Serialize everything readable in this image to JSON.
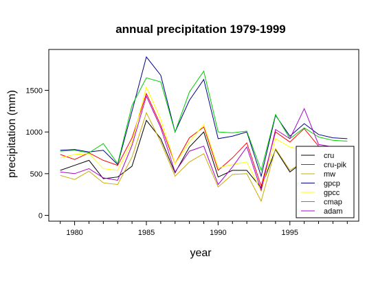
{
  "chart_data": {
    "type": "line",
    "title": "annual precipitation 1979-1999",
    "xlabel": "year",
    "ylabel": "precipitation (mm)",
    "xlim": [
      1978.2,
      1999.8
    ],
    "ylim": [
      -70,
      1990
    ],
    "xticks": [
      1980,
      1985,
      1990,
      1995
    ],
    "yticks": [
      0,
      500,
      1000,
      1500
    ],
    "grid": false,
    "legend_position": "bottom-right",
    "x": [
      1979,
      1980,
      1981,
      1982,
      1983,
      1984,
      1985,
      1986,
      1987,
      1988,
      1989,
      1990,
      1991,
      1992,
      1993,
      1994,
      1995,
      1996,
      1997,
      1998,
      1999
    ],
    "series": [
      {
        "name": "cru",
        "color": "#000000",
        "values": [
          540,
          600,
          660,
          440,
          460,
          590,
          1140,
          920,
          510,
          820,
          1000,
          460,
          540,
          540,
          330,
          790,
          520,
          650,
          810,
          770,
          760
        ]
      },
      {
        "name": "cru-pik",
        "color": "#ff0000",
        "values": [
          730,
          670,
          750,
          660,
          600,
          930,
          1460,
          1080,
          620,
          930,
          1060,
          540,
          690,
          870,
          350,
          1000,
          880,
          1040,
          830,
          810,
          800
        ]
      },
      {
        "name": "mw",
        "color": "#ccaa00",
        "values": [
          480,
          430,
          530,
          390,
          370,
          700,
          1230,
          880,
          470,
          640,
          740,
          340,
          490,
          500,
          170,
          800,
          540,
          650,
          800,
          780,
          770
        ]
      },
      {
        "name": "gpcp",
        "color": "#00008b",
        "values": [
          780,
          790,
          760,
          780,
          610,
          1250,
          1900,
          1680,
          1000,
          1380,
          1630,
          920,
          950,
          1000,
          470,
          1200,
          950,
          1100,
          970,
          930,
          920
        ]
      },
      {
        "name": "gpcc",
        "color": "#ffff00",
        "values": [
          690,
          730,
          740,
          560,
          540,
          880,
          1540,
          1150,
          620,
          880,
          1090,
          570,
          610,
          640,
          290,
          920,
          820,
          780,
          790,
          770,
          760
        ]
      },
      {
        "name": "cmap",
        "color": "#00cc00",
        "values": [
          770,
          780,
          750,
          860,
          620,
          1320,
          1650,
          1600,
          1000,
          1480,
          1730,
          1000,
          990,
          1010,
          540,
          1210,
          920,
          1050,
          940,
          900,
          890
        ]
      },
      {
        "name": "adam",
        "color": "#aa00cc",
        "values": [
          520,
          500,
          560,
          450,
          420,
          840,
          1430,
          1050,
          520,
          770,
          830,
          370,
          580,
          820,
          300,
          1030,
          920,
          1280,
          850,
          820,
          810
        ]
      }
    ]
  }
}
